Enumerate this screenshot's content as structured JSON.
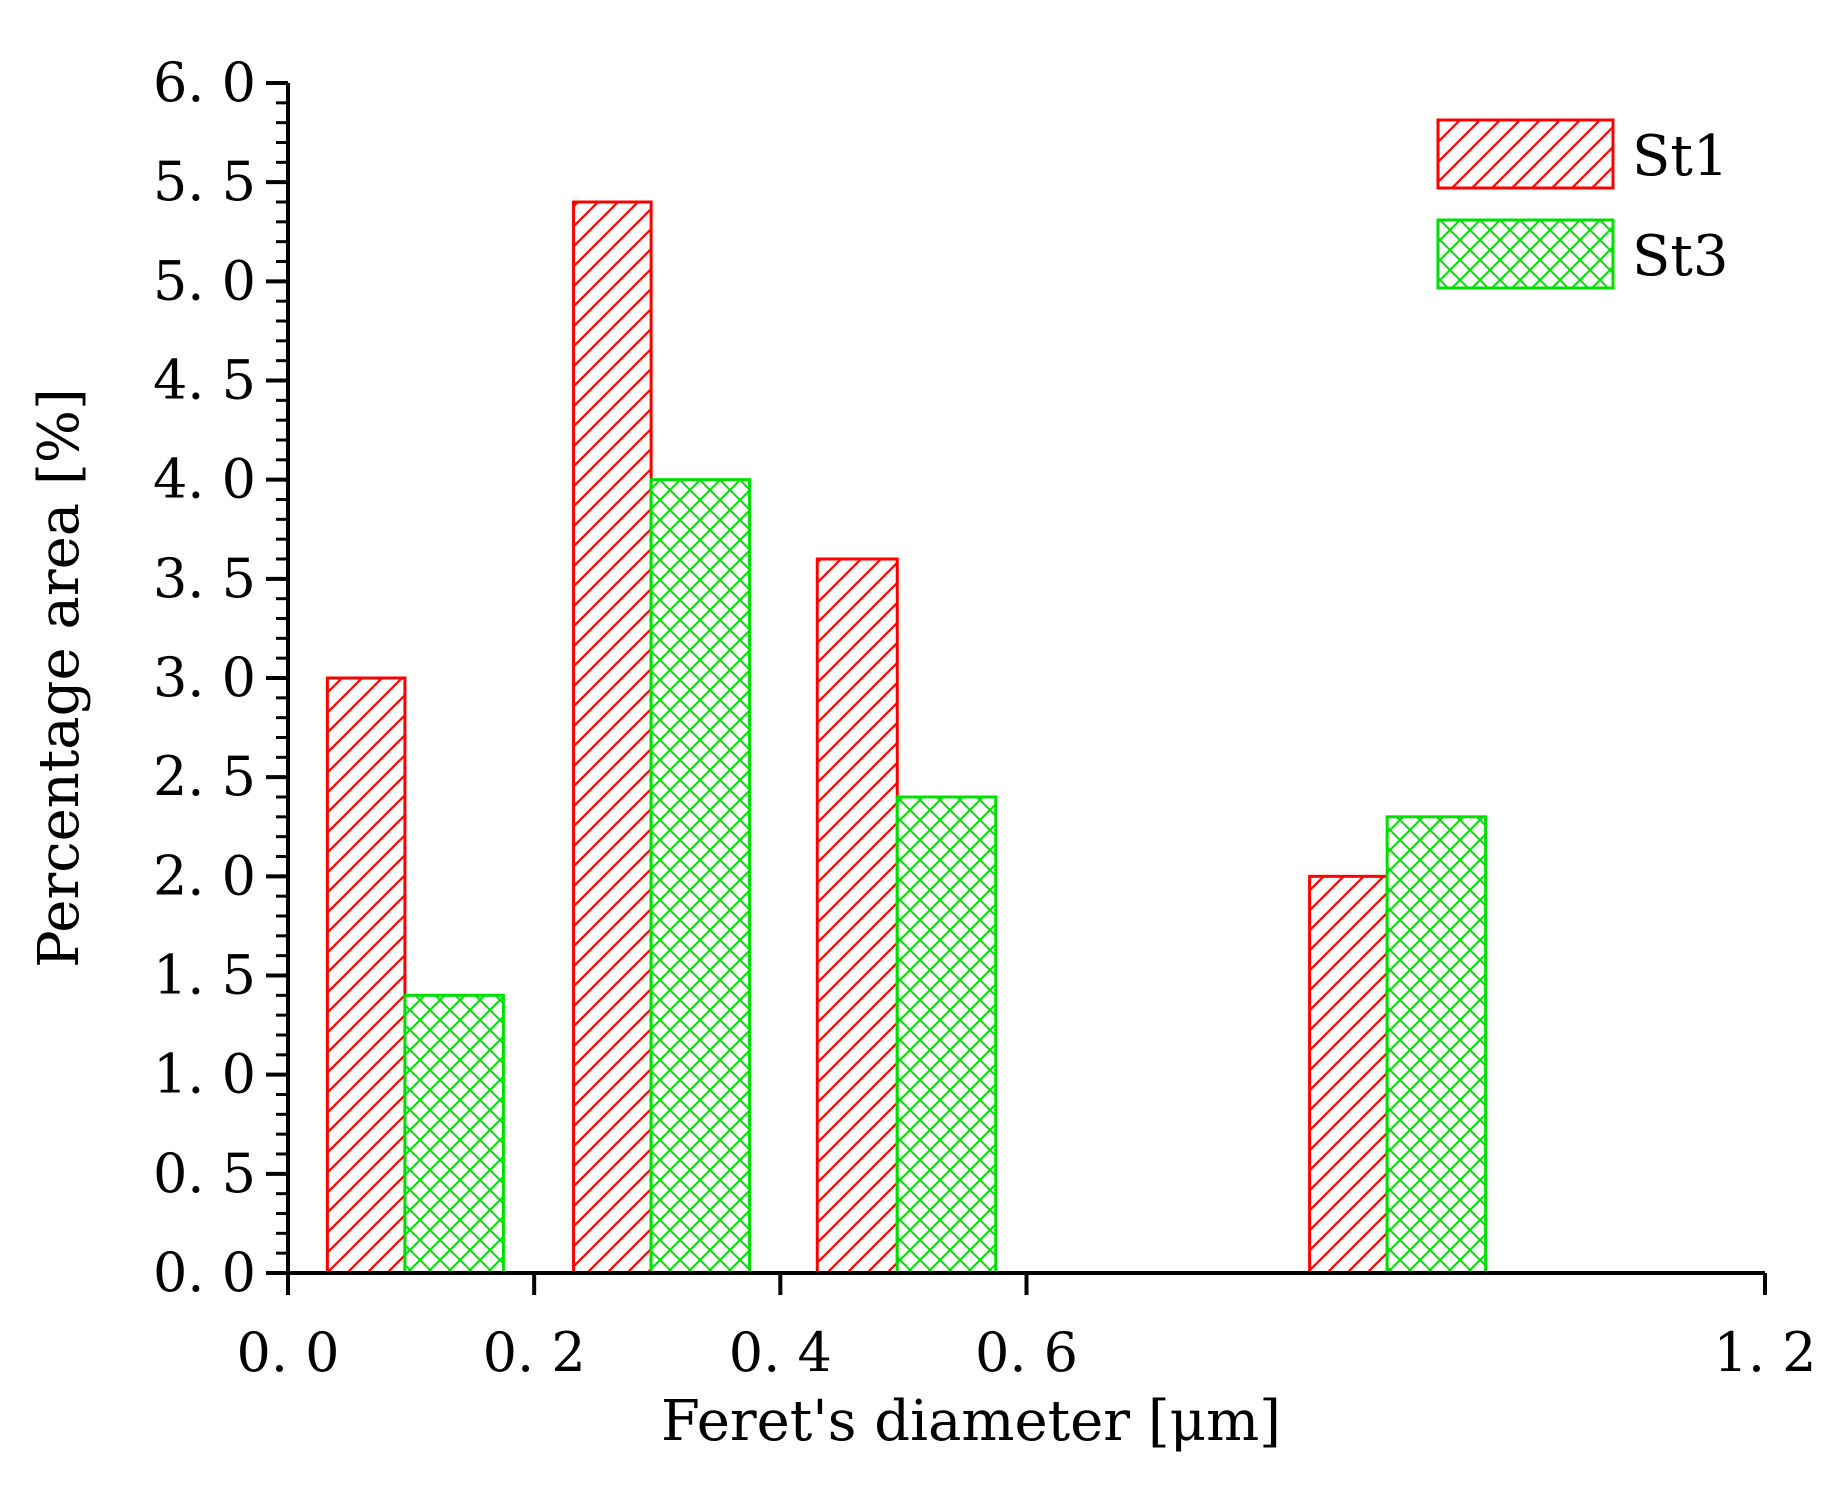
{
  "chart_data": {
    "type": "bar",
    "title": "",
    "xlabel": "Feret's diameter [μm]",
    "ylabel": "Percentage area [%]",
    "ylim": [
      0,
      6
    ],
    "xlim": [
      0,
      1.2
    ],
    "x_ticks": [
      {
        "value": 0.0,
        "label": "0. 0"
      },
      {
        "value": 0.2,
        "label": "0. 2"
      },
      {
        "value": 0.4,
        "label": "0. 4"
      },
      {
        "value": 0.6,
        "label": "0. 6"
      },
      {
        "value": 1.2,
        "label": "1. 2"
      }
    ],
    "y_ticks": [
      {
        "value": 0.0,
        "label": "0. 0"
      },
      {
        "value": 0.5,
        "label": "0. 5"
      },
      {
        "value": 1.0,
        "label": "1. 0"
      },
      {
        "value": 1.5,
        "label": "1. 5"
      },
      {
        "value": 2.0,
        "label": "2. 0"
      },
      {
        "value": 2.5,
        "label": "2. 5"
      },
      {
        "value": 3.0,
        "label": "3. 0"
      },
      {
        "value": 3.5,
        "label": "3. 5"
      },
      {
        "value": 4.0,
        "label": "4. 0"
      },
      {
        "value": 4.5,
        "label": "4. 5"
      },
      {
        "value": 5.0,
        "label": "5. 0"
      },
      {
        "value": 5.5,
        "label": "5. 5"
      },
      {
        "value": 6.0,
        "label": "6. 0"
      }
    ],
    "bar_x_extents": [
      [
        0.032,
        0.095,
        0.175
      ],
      [
        0.232,
        0.295,
        0.375
      ],
      [
        0.43,
        0.495,
        0.575
      ],
      [
        0.83,
        0.893,
        0.973
      ]
    ],
    "series": [
      {
        "name": "St1",
        "color": "#ff0000",
        "pattern": "diagonal-hatch",
        "values": [
          3.0,
          5.4,
          3.6,
          2.0
        ]
      },
      {
        "name": "St3",
        "color": "#00e000",
        "pattern": "cross-hatch",
        "values": [
          1.4,
          4.0,
          2.4,
          2.3
        ]
      }
    ],
    "legend_position": "top-right",
    "grid": false
  }
}
